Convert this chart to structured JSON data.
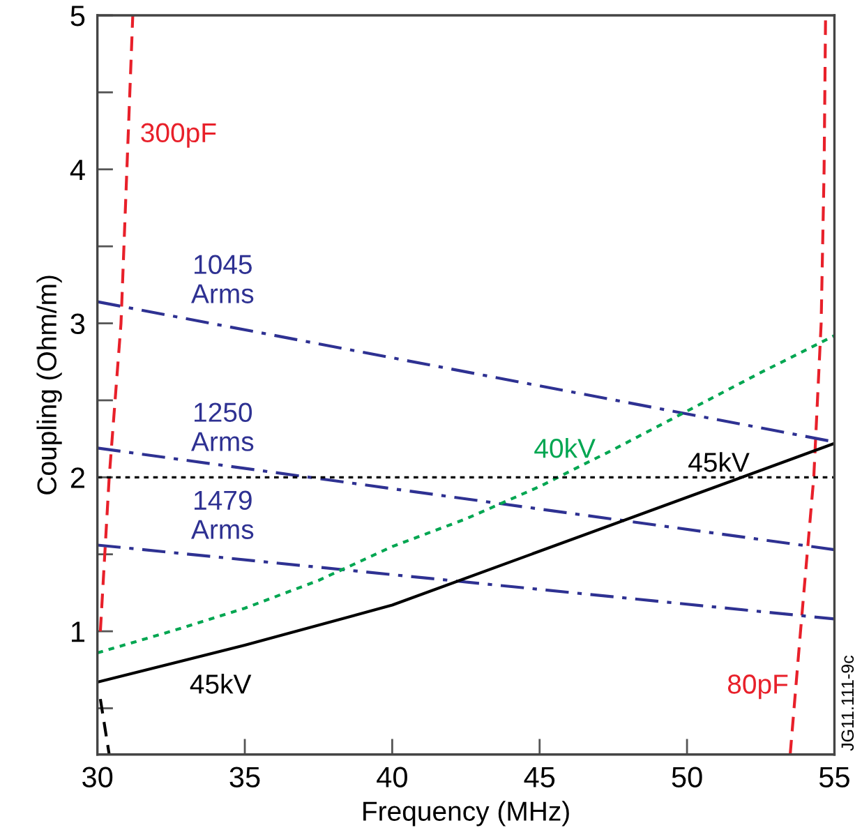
{
  "chart_data": {
    "type": "line",
    "xlabel": "Frequency (MHz)",
    "ylabel": "Coupling (Ohm/m)",
    "xlim": [
      30,
      55
    ],
    "xticks": [
      30,
      35,
      40,
      45,
      50,
      55
    ],
    "ylim": [
      0.2,
      5
    ],
    "yticks": [
      {
        "value": 0.5,
        "label": null
      },
      1,
      {
        "value": 1.5,
        "label": null
      },
      2,
      {
        "value": 2.5,
        "label": null
      },
      3,
      {
        "value": 3.5,
        "label": null
      },
      4,
      {
        "value": 4.5,
        "label": null
      },
      5
    ],
    "grid": false,
    "legend": false,
    "marker": "none",
    "series": [
      {
        "name": "300pF",
        "color": "#e8202a",
        "line_style": "dashed",
        "x": [
          30.1,
          30.4,
          30.8,
          31.0,
          31.2
        ],
        "values": [
          1,
          2,
          3,
          4,
          5
        ]
      },
      {
        "name": "80pF",
        "color": "#e8202a",
        "line_style": "dashed",
        "x": [
          53.5,
          53.85,
          54.3,
          54.55,
          54.65,
          54.7
        ],
        "values": [
          0.2,
          1,
          2,
          3,
          4,
          5
        ]
      },
      {
        "name": "1045\nArms",
        "color": "#2e3192",
        "line_style": "dashdot",
        "x": [
          30,
          55
        ],
        "values": [
          3.14,
          2.23
        ]
      },
      {
        "name": "1250\nArms",
        "color": "#2e3192",
        "line_style": "dashdot",
        "x": [
          30,
          55
        ],
        "values": [
          2.19,
          1.53
        ]
      },
      {
        "name": "1479\nArms",
        "color": "#2e3192",
        "line_style": "dashdot",
        "x": [
          30,
          55
        ],
        "values": [
          1.56,
          1.08
        ]
      },
      {
        "name": "40kV",
        "color": "#00a651",
        "line_style": "dotted",
        "x": [
          30,
          32.5,
          35,
          37.5,
          40,
          42.5,
          45,
          47.5,
          50,
          52.5,
          55
        ],
        "values": [
          0.86,
          1.0,
          1.15,
          1.33,
          1.55,
          1.73,
          1.94,
          2.18,
          2.43,
          2.68,
          2.92
        ]
      },
      {
        "name": "45kV",
        "color": "#000000",
        "line_style": "solid",
        "x": [
          30,
          35,
          40,
          45,
          50,
          55
        ],
        "values": [
          0.67,
          0.91,
          1.17,
          1.52,
          1.87,
          2.22
        ]
      },
      {
        "color": "#000000",
        "line_style": "dashed",
        "x": [
          30.1,
          30.4
        ],
        "values": [
          0.56,
          0.2
        ]
      }
    ],
    "ref_lines": [
      {
        "axis": "y",
        "value": 2,
        "color": "#000000",
        "line_style": "dotted"
      }
    ],
    "annotations": [
      "JG11.111-9c"
    ]
  }
}
